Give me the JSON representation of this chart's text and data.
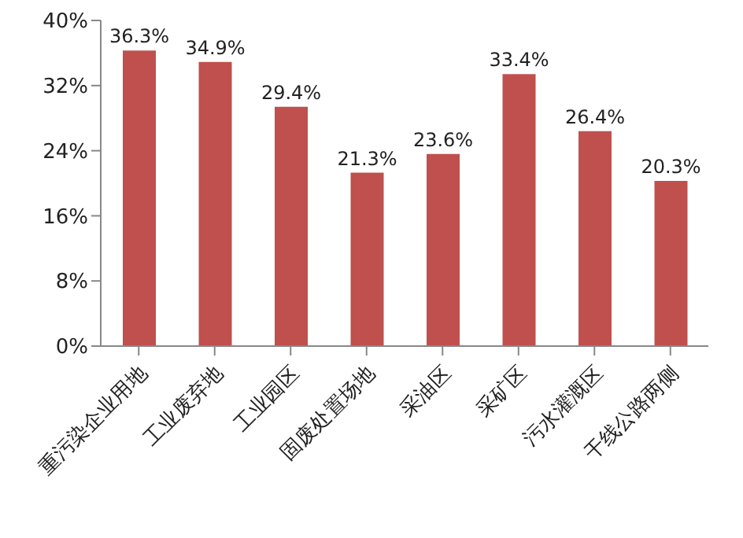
{
  "chart_data": {
    "type": "bar",
    "categories": [
      "重污染企业用地",
      "工业废弃地",
      "工业园区",
      "固废处置场地",
      "采油区",
      "采矿区",
      "污水灌溉区",
      "干线公路两侧"
    ],
    "values": [
      36.3,
      34.9,
      29.4,
      21.3,
      23.6,
      33.4,
      26.4,
      20.3
    ],
    "value_labels": [
      "36.3%",
      "34.9%",
      "29.4%",
      "21.3%",
      "23.6%",
      "33.4%",
      "26.4%",
      "20.3%"
    ],
    "color": "#c0504d",
    "ylim": [
      0,
      40
    ],
    "yticks": [
      {
        "value": 0,
        "label": "0%"
      },
      {
        "value": 8,
        "label": "8%"
      },
      {
        "value": 16,
        "label": "16%"
      },
      {
        "value": 24,
        "label": "24%"
      },
      {
        "value": 32,
        "label": "32%"
      },
      {
        "value": 40,
        "label": "40%"
      }
    ],
    "grid": false,
    "legend": false
  }
}
